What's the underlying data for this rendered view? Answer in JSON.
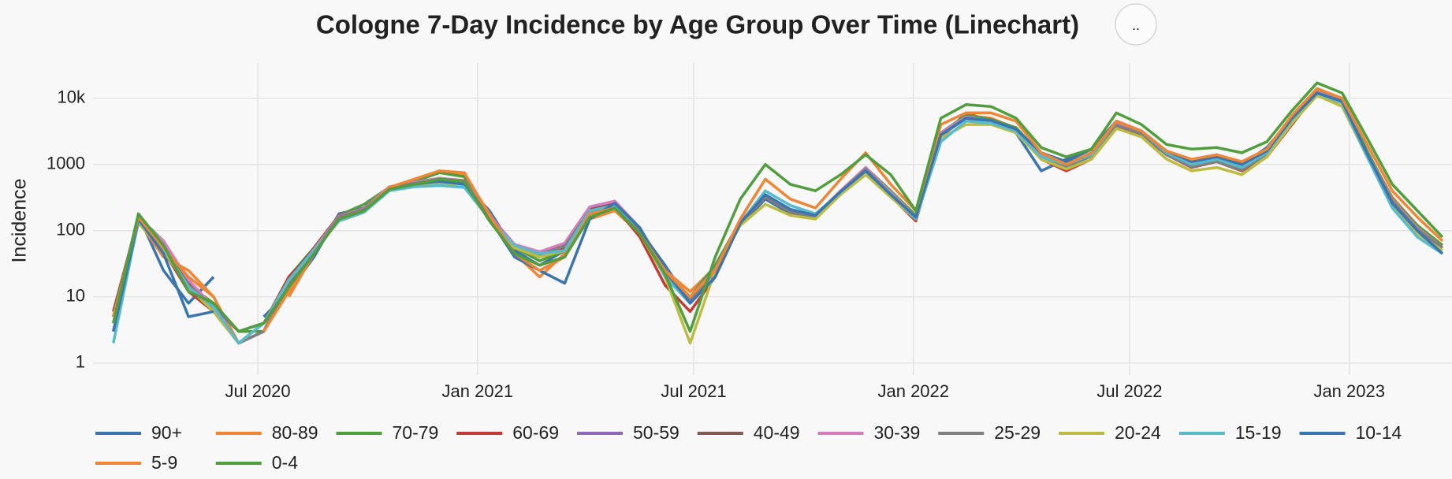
{
  "chart_data": {
    "type": "line",
    "title": "Cologne 7-Day Incidence by Age Group Over Time (Linechart)",
    "button": "..",
    "y_label": "Incidence",
    "log_scale": true,
    "grid": true,
    "legend": "bottom",
    "xlim": [
      "2020-02-14",
      "2023-03-28"
    ],
    "xticks": [
      {
        "value": "2020-07-01",
        "label": "Jul 2020"
      },
      {
        "value": "2021-01-01",
        "label": "Jan 2021"
      },
      {
        "value": "2021-07-01",
        "label": "Jul 2021"
      },
      {
        "value": "2022-01-01",
        "label": "Jan 2022"
      },
      {
        "value": "2022-07-01",
        "label": "Jul 2022"
      },
      {
        "value": "2023-01-01",
        "label": "Jan 2023"
      }
    ],
    "ylim": [
      0.66,
      34000
    ],
    "yticks": [
      1,
      10,
      100,
      1000,
      {
        "value": 10000,
        "label": "10k"
      }
    ],
    "x": [
      "2020-03-02",
      "2020-03-23",
      "2020-04-13",
      "2020-05-04",
      "2020-05-25",
      "2020-06-15",
      "2020-07-06",
      "2020-07-27",
      "2020-08-17",
      "2020-09-07",
      "2020-09-28",
      "2020-10-19",
      "2020-11-09",
      "2020-11-30",
      "2020-12-21",
      "2021-01-11",
      "2021-02-01",
      "2021-02-22",
      "2021-03-15",
      "2021-04-05",
      "2021-04-26",
      "2021-05-17",
      "2021-06-07",
      "2021-06-28",
      "2021-07-19",
      "2021-08-09",
      "2021-08-30",
      "2021-09-20",
      "2021-10-11",
      "2021-11-01",
      "2021-11-22",
      "2021-12-13",
      "2022-01-03",
      "2022-01-24",
      "2022-02-14",
      "2022-03-07",
      "2022-03-28",
      "2022-04-18",
      "2022-05-09",
      "2022-05-30",
      "2022-06-20",
      "2022-07-11",
      "2022-08-01",
      "2022-08-22",
      "2022-09-12",
      "2022-10-03",
      "2022-10-24",
      "2022-11-14",
      "2022-12-05",
      "2022-12-26",
      "2023-01-16",
      "2023-02-06",
      "2023-02-27",
      "2023-03-20"
    ],
    "series": [
      {
        "name": "90+",
        "color": "#3b75af",
        "values": [
          5,
          170,
          25,
          8,
          20,
          null,
          5,
          12,
          40,
          180,
          220,
          450,
          500,
          550,
          500,
          200,
          50,
          30,
          50,
          180,
          220,
          100,
          30,
          8,
          25,
          120,
          300,
          180,
          160,
          350,
          800,
          350,
          150,
          2500,
          6000,
          4500,
          3000,
          800,
          1200,
          1700,
          4500,
          3200,
          1500,
          1100,
          1300,
          1000,
          1800,
          5000,
          12000,
          9000,
          1400,
          280,
          110,
          55
        ]
      },
      {
        "name": "80-89",
        "color": "#ef8636",
        "values": [
          6,
          140,
          40,
          25,
          10,
          2,
          null,
          10,
          45,
          160,
          200,
          420,
          600,
          750,
          700,
          180,
          45,
          20,
          45,
          150,
          200,
          90,
          25,
          12,
          28,
          130,
          320,
          200,
          170,
          380,
          850,
          380,
          170,
          2800,
          5500,
          5000,
          3500,
          1300,
          900,
          1400,
          3800,
          2800,
          1400,
          900,
          1100,
          800,
          1400,
          4500,
          11000,
          8500,
          1500,
          320,
          120,
          60
        ]
      },
      {
        "name": "70-79",
        "color": "#519e3e",
        "values": [
          4,
          160,
          70,
          15,
          8,
          3,
          3,
          20,
          55,
          170,
          250,
          450,
          550,
          750,
          650,
          160,
          55,
          35,
          50,
          170,
          230,
          100,
          22,
          10,
          30,
          140,
          330,
          200,
          170,
          400,
          900,
          400,
          170,
          3000,
          5500,
          4800,
          3600,
          1400,
          1000,
          1500,
          4200,
          3100,
          1500,
          1000,
          1200,
          900,
          1600,
          5200,
          13000,
          9500,
          1600,
          300,
          120,
          60
        ]
      },
      {
        "name": "60-69",
        "color": "#c53a32",
        "values": [
          3,
          150,
          50,
          12,
          6,
          2,
          4,
          20,
          50,
          150,
          200,
          400,
          500,
          600,
          550,
          150,
          55,
          40,
          55,
          200,
          230,
          80,
          15,
          6,
          20,
          130,
          320,
          190,
          170,
          380,
          800,
          330,
          140,
          2800,
          5000,
          4500,
          3200,
          1200,
          800,
          1200,
          3500,
          2800,
          1400,
          900,
          1100,
          800,
          1300,
          4000,
          12000,
          8500,
          1300,
          250,
          100,
          55
        ]
      },
      {
        "name": "50-59",
        "color": "#8d69b8",
        "values": [
          5,
          160,
          65,
          14,
          7,
          3,
          4,
          16,
          50,
          160,
          220,
          430,
          520,
          600,
          560,
          170,
          60,
          45,
          60,
          220,
          260,
          110,
          22,
          10,
          25,
          140,
          330,
          190,
          160,
          380,
          850,
          370,
          160,
          2900,
          5200,
          4600,
          3400,
          1400,
          1000,
          1400,
          4000,
          3000,
          1400,
          950,
          1150,
          850,
          1500,
          4700,
          12000,
          8800,
          1450,
          290,
          110,
          55
        ]
      },
      {
        "name": "40-49",
        "color": "#84584e",
        "values": [
          6,
          155,
          60,
          16,
          6,
          2,
          3,
          18,
          55,
          170,
          210,
          440,
          530,
          620,
          570,
          160,
          60,
          45,
          60,
          210,
          250,
          100,
          20,
          9,
          26,
          135,
          320,
          190,
          160,
          380,
          870,
          360,
          155,
          2800,
          5100,
          4500,
          3300,
          1350,
          950,
          1400,
          3900,
          2900,
          1400,
          930,
          1130,
          840,
          1450,
          4600,
          12000,
          8700,
          1400,
          280,
          105,
          55
        ]
      },
      {
        "name": "30-39",
        "color": "#d57dbe",
        "values": [
          5,
          150,
          70,
          18,
          7,
          2,
          3,
          17,
          52,
          165,
          215,
          460,
          540,
          620,
          560,
          170,
          62,
          48,
          65,
          230,
          280,
          110,
          22,
          10,
          26,
          140,
          330,
          200,
          170,
          400,
          900,
          380,
          160,
          3000,
          5200,
          4500,
          3300,
          1350,
          950,
          1400,
          4100,
          3000,
          1400,
          940,
          1120,
          830,
          1450,
          4700,
          12500,
          9000,
          1450,
          290,
          110,
          55
        ]
      },
      {
        "name": "25-29",
        "color": "#7f7f7f",
        "values": [
          4,
          145,
          55,
          15,
          7,
          2,
          3,
          16,
          48,
          160,
          210,
          440,
          520,
          600,
          550,
          160,
          58,
          44,
          58,
          200,
          240,
          100,
          20,
          9,
          25,
          130,
          320,
          190,
          160,
          380,
          850,
          360,
          150,
          2700,
          5000,
          4400,
          3200,
          1300,
          900,
          1350,
          3900,
          2900,
          1400,
          920,
          1100,
          820,
          1400,
          4500,
          12000,
          8600,
          1400,
          280,
          105,
          55
        ]
      },
      {
        "name": "20-24",
        "color": "#bcbc45",
        "values": [
          3,
          130,
          50,
          14,
          6,
          2,
          4,
          18,
          50,
          140,
          190,
          400,
          480,
          500,
          450,
          150,
          55,
          40,
          50,
          170,
          220,
          90,
          20,
          2,
          25,
          120,
          250,
          170,
          150,
          350,
          700,
          320,
          150,
          2500,
          4000,
          4000,
          3000,
          1200,
          850,
          1200,
          3500,
          2600,
          1200,
          800,
          900,
          700,
          1300,
          4200,
          11000,
          7500,
          1300,
          250,
          90,
          50
        ]
      },
      {
        "name": "15-19",
        "color": "#58bbcc",
        "values": [
          2,
          140,
          55,
          14,
          7,
          2,
          4,
          18,
          50,
          140,
          190,
          400,
          460,
          480,
          450,
          150,
          60,
          45,
          50,
          200,
          240,
          110,
          20,
          8,
          20,
          130,
          400,
          240,
          180,
          380,
          800,
          360,
          150,
          2200,
          4500,
          4200,
          3200,
          1300,
          1000,
          1400,
          4500,
          3200,
          1500,
          1000,
          1200,
          900,
          1500,
          4800,
          12000,
          8500,
          1300,
          220,
          80,
          45
        ]
      },
      {
        "name": "10-14",
        "color": "#3b75af",
        "values": [
          3,
          150,
          45,
          5,
          6,
          null,
          4,
          14,
          45,
          150,
          200,
          420,
          500,
          560,
          520,
          150,
          40,
          25,
          16,
          150,
          260,
          110,
          25,
          8,
          20,
          130,
          350,
          210,
          170,
          390,
          800,
          350,
          160,
          2800,
          5000,
          4600,
          3400,
          1500,
          1100,
          1700,
          4500,
          3200,
          1600,
          1100,
          1300,
          1000,
          1600,
          5000,
          12000,
          9000,
          1450,
          260,
          100,
          45
        ]
      },
      {
        "name": "5-9",
        "color": "#ef8636",
        "values": [
          5,
          160,
          55,
          20,
          10,
          null,
          3,
          12,
          45,
          150,
          200,
          450,
          600,
          800,
          750,
          170,
          45,
          25,
          40,
          180,
          220,
          90,
          25,
          10,
          25,
          150,
          600,
          300,
          220,
          600,
          1500,
          500,
          200,
          4000,
          6000,
          6000,
          4500,
          1500,
          1000,
          1500,
          4500,
          3200,
          1600,
          1200,
          1400,
          1100,
          1700,
          5500,
          14000,
          10000,
          2000,
          400,
          160,
          70
        ]
      },
      {
        "name": "0-4",
        "color": "#519e3e",
        "values": [
          4,
          180,
          60,
          12,
          8,
          3,
          4,
          14,
          45,
          150,
          200,
          420,
          500,
          600,
          550,
          140,
          45,
          30,
          40,
          160,
          220,
          90,
          22,
          3,
          40,
          300,
          1000,
          500,
          400,
          700,
          1400,
          700,
          200,
          5000,
          8000,
          7500,
          5000,
          1800,
          1300,
          1700,
          6000,
          4000,
          2000,
          1700,
          1800,
          1500,
          2200,
          6500,
          17000,
          12000,
          2500,
          500,
          200,
          80
        ]
      }
    ]
  }
}
